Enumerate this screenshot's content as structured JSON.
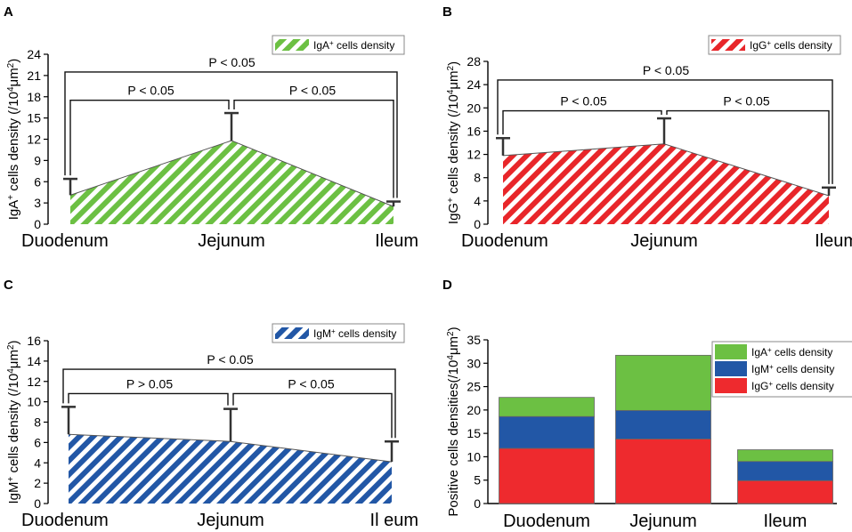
{
  "chart_data": [
    {
      "panel": "A",
      "type": "area",
      "pattern": "hatched",
      "color": "#6cc043",
      "categories": [
        "Duodenum",
        "Jejunum",
        "Ileum"
      ],
      "values": [
        4.1,
        11.8,
        2.5
      ],
      "errors": [
        2.3,
        3.9,
        0.7
      ],
      "ylim": [
        0,
        24
      ],
      "yticks": [
        0,
        3,
        6,
        9,
        12,
        15,
        18,
        21,
        24
      ],
      "ylabel": {
        "pre": "IgA",
        "sup": "+",
        "mid": " cells density (/10",
        "sup2": "4",
        "post": "μm",
        "sup3": "2",
        "end": ")"
      },
      "legend": {
        "pre": "IgA",
        "sup": "+",
        "post": " cells density"
      },
      "significance": [
        {
          "from": 0,
          "to": 1,
          "label": "P < 0.05",
          "level": 17.5
        },
        {
          "from": 1,
          "to": 2,
          "label": "P < 0.05",
          "level": 17.5
        },
        {
          "from": 0,
          "to": 2,
          "label": "P < 0.05",
          "level": 21.5
        }
      ]
    },
    {
      "panel": "B",
      "type": "area",
      "pattern": "hatched",
      "color": "#e8262a",
      "categories": [
        "Duodenum",
        "Jejunum",
        "Ileum"
      ],
      "values": [
        11.8,
        13.8,
        4.9
      ],
      "errors": [
        3.0,
        4.4,
        1.4
      ],
      "ylim": [
        0,
        28
      ],
      "yticks": [
        0,
        4,
        8,
        12,
        16,
        20,
        24,
        28
      ],
      "ylabel": {
        "pre": "IgG",
        "sup": "+",
        "mid": " cells density (/10",
        "sup2": "4",
        "post": "μm",
        "sup3": "2",
        "end": ")"
      },
      "legend": {
        "pre": "IgG",
        "sup": "+",
        "post": " cells density"
      },
      "significance": [
        {
          "from": 0,
          "to": 1,
          "label": "P < 0.05",
          "level": 19.5
        },
        {
          "from": 1,
          "to": 2,
          "label": "P < 0.05",
          "level": 19.5
        },
        {
          "from": 0,
          "to": 2,
          "label": "P < 0.05",
          "level": 24.8
        }
      ]
    },
    {
      "panel": "C",
      "type": "area",
      "pattern": "hatched",
      "color": "#2257a6",
      "categories": [
        "Duodenum",
        "Jejunum",
        "Ileum"
      ],
      "values": [
        6.8,
        6.1,
        4.1
      ],
      "errors": [
        2.7,
        3.2,
        2.0
      ],
      "ylim": [
        0,
        16
      ],
      "yticks": [
        0,
        2,
        4,
        6,
        8,
        10,
        12,
        14,
        16
      ],
      "ylabel": {
        "pre": "IgM",
        "sup": "+",
        "mid": " cells density (/10",
        "sup2": "4",
        "post": "μm",
        "sup3": "2",
        "end": ")"
      },
      "legend": {
        "pre": "IgM",
        "sup": "+",
        "post": " cells density"
      },
      "category_labels_display": [
        "Duodenum",
        "Jejunum",
        "Il eum"
      ],
      "significance": [
        {
          "from": 0,
          "to": 1,
          "label": "P > 0.05",
          "level": 10.8
        },
        {
          "from": 1,
          "to": 2,
          "label": "P < 0.05",
          "level": 10.8
        },
        {
          "from": 0,
          "to": 2,
          "label": "P < 0.05",
          "level": 13.2
        }
      ]
    },
    {
      "panel": "D",
      "type": "bar",
      "stacked": true,
      "categories": [
        "Duodenum",
        "Jejunum",
        "Ileum"
      ],
      "ylim": [
        0,
        35
      ],
      "yticks": [
        0,
        5,
        10,
        15,
        20,
        25,
        30,
        35
      ],
      "ylabel": {
        "pre": "Positive cells densities(/10",
        "sup": "4",
        "mid": "μm",
        "sup2": "2",
        "end": ")"
      },
      "series": [
        {
          "name": "IgG+ cells density",
          "pre": "IgG",
          "sup": "+",
          "post": " cells density",
          "color": "#ee2a2e",
          "values": [
            11.8,
            13.8,
            4.9
          ]
        },
        {
          "name": "IgM+ cells density",
          "pre": "IgM",
          "sup": "+",
          "post": " cells density",
          "color": "#2257a6",
          "values": [
            6.8,
            6.1,
            4.1
          ]
        },
        {
          "name": "IgA+ cells density",
          "pre": "IgA",
          "sup": "+",
          "post": " cells density",
          "color": "#6cc043",
          "values": [
            4.1,
            11.8,
            2.5
          ]
        }
      ],
      "legend_order": [
        2,
        1,
        0
      ]
    }
  ]
}
